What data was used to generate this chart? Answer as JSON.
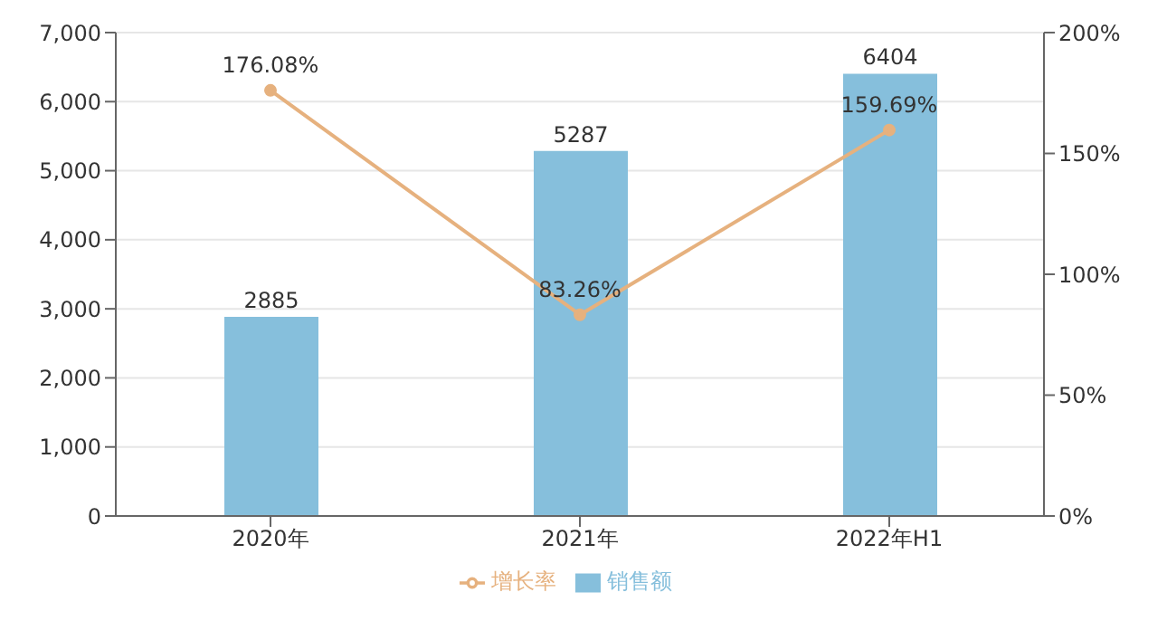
{
  "chart_data": {
    "type": "bar",
    "categories": [
      "2020年",
      "2021年",
      "2022年H1"
    ],
    "series": [
      {
        "name": "销售额",
        "color": "#86bfdc",
        "values": [
          2885,
          5287,
          6404
        ]
      },
      {
        "name": "增长率",
        "type": "line",
        "axis": "y2",
        "color": "#e6b17e",
        "values": [
          176.08,
          83.26,
          159.69
        ],
        "value_labels": [
          "176.08%",
          "83.26%",
          "159.69%"
        ]
      }
    ],
    "ylim": [
      0,
      7000
    ],
    "yticks": [
      0,
      {
        "value": 1000,
        "label": "1,000"
      },
      {
        "value": 2000,
        "label": "2,000"
      },
      {
        "value": 3000,
        "label": "3,000"
      },
      {
        "value": 4000,
        "label": "4,000"
      },
      {
        "value": 5000,
        "label": "5,000"
      },
      {
        "value": 6000,
        "label": "6,000"
      },
      {
        "value": 7000,
        "label": "7,000"
      }
    ],
    "y2lim": [
      0,
      200
    ],
    "y2ticks": [
      {
        "value": 0,
        "label": "0%"
      },
      {
        "value": 50,
        "label": "50%"
      },
      {
        "value": 100,
        "label": "100%"
      },
      {
        "value": 150,
        "label": "150%"
      },
      {
        "value": 200,
        "label": "200%"
      }
    ],
    "data_labels": true,
    "grid": "y",
    "legend": "bottom",
    "marker": "circle"
  }
}
